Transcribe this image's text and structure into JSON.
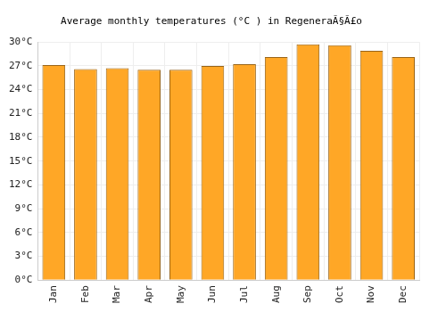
{
  "chart_data": {
    "type": "bar",
    "title": "Average monthly temperatures (°C ) in RegeneraÃ§Ã£o",
    "categories": [
      "Jan",
      "Feb",
      "Mar",
      "Apr",
      "May",
      "Jun",
      "Jul",
      "Aug",
      "Sep",
      "Oct",
      "Nov",
      "Dec"
    ],
    "values": [
      27.1,
      26.6,
      26.7,
      26.5,
      26.5,
      27.0,
      27.2,
      28.1,
      29.7,
      29.6,
      28.9,
      28.1
    ],
    "color": "#ffa726",
    "ylim": [
      0,
      30
    ],
    "yticks": [
      {
        "value": 0,
        "label": "0°C"
      },
      {
        "value": 3,
        "label": "3°C"
      },
      {
        "value": 6,
        "label": "6°C"
      },
      {
        "value": 9,
        "label": "9°C"
      },
      {
        "value": 12,
        "label": "12°C"
      },
      {
        "value": 15,
        "label": "15°C"
      },
      {
        "value": 18,
        "label": "18°C"
      },
      {
        "value": 21,
        "label": "21°C"
      },
      {
        "value": 24,
        "label": "24°C"
      },
      {
        "value": 27,
        "label": "27°C"
      },
      {
        "value": 30,
        "label": "30°C"
      }
    ],
    "grid": true
  }
}
